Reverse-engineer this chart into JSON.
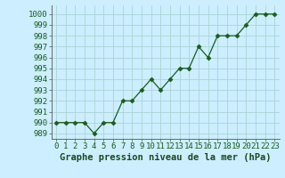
{
  "x": [
    0,
    1,
    2,
    3,
    4,
    5,
    6,
    7,
    8,
    9,
    10,
    11,
    12,
    13,
    14,
    15,
    16,
    17,
    18,
    19,
    20,
    21,
    22,
    23
  ],
  "y": [
    990,
    990,
    990,
    990,
    989,
    990,
    990,
    992,
    992,
    993,
    994,
    993,
    994,
    995,
    995,
    997,
    996,
    998,
    998,
    998,
    999,
    1000,
    1000,
    1000
  ],
  "line_color": "#1a5c1a",
  "marker": "D",
  "marker_size": 2.5,
  "bg_color": "#cceeff",
  "grid_color": "#aad4d4",
  "xlabel": "Graphe pression niveau de la mer (hPa)",
  "ylim": [
    988.5,
    1000.8
  ],
  "yticks": [
    989,
    990,
    991,
    992,
    993,
    994,
    995,
    996,
    997,
    998,
    999,
    1000
  ],
  "xticks": [
    0,
    1,
    2,
    3,
    4,
    5,
    6,
    7,
    8,
    9,
    10,
    11,
    12,
    13,
    14,
    15,
    16,
    17,
    18,
    19,
    20,
    21,
    22,
    23
  ],
  "title_fontsize": 7.5,
  "tick_fontsize": 6.5
}
